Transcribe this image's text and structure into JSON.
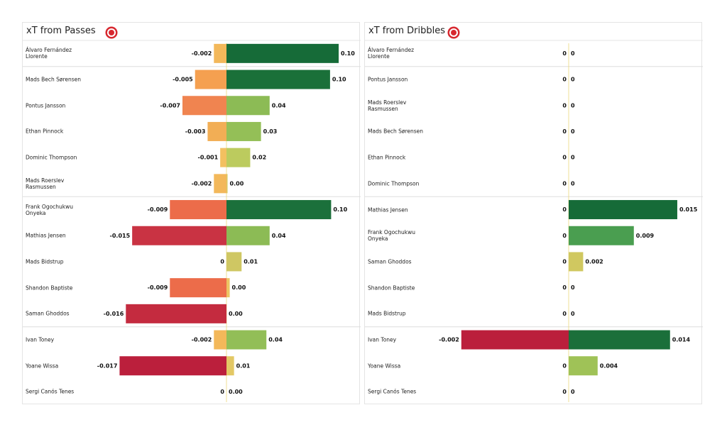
{
  "chart_data": [
    {
      "type": "diverging-bar",
      "title": "xT from Passes",
      "categories": [
        "Álvaro Fernández Llorente",
        "Mads Bech Sørensen",
        "Pontus Jansson",
        "Ethan Pinnock",
        "Dominic Thompson",
        "Mads Roerslev Rasmussen",
        "Frank Ogochukwu Onyeka",
        "Mathias Jensen",
        "Mads Bidstrup",
        "Shandon Baptiste",
        "Saman Ghoddos",
        "Ivan Toney",
        "Yoane Wissa",
        "Sergi Canós Tenes"
      ],
      "series": [
        {
          "values": [
            -0.002,
            -0.005,
            -0.007,
            -0.003,
            -0.001,
            -0.002,
            -0.009,
            -0.015,
            0,
            -0.009,
            -0.016,
            -0.002,
            -0.017,
            0
          ],
          "xlim": [
            -0.0175,
            0
          ],
          "colors": [
            "#f3b85a",
            "#f5a050",
            "#f08450",
            "#f2ae55",
            "#f3c060",
            "#f3b85a",
            "#ec6c4a",
            "#c93343",
            "#f3c060",
            "#ec6c4a",
            "#c42b3f",
            "#f3b85a",
            "#bb1f3c",
            "#f3c060"
          ]
        },
        {
          "values": [
            0.104,
            0.096,
            0.04,
            0.032,
            0.022,
            0.001,
            0.097,
            0.04,
            0.014,
            0.003,
            0,
            0.037,
            0.007,
            0
          ],
          "value_labels": [
            "0.10",
            "0.10",
            "0.04",
            "0.03",
            "0.02",
            "0.00",
            "0.10",
            "0.04",
            "0.01",
            "0.00",
            "0.00",
            "0.04",
            "0.01",
            "0.00"
          ],
          "xlim": [
            0,
            0.102
          ],
          "colors": [
            "#166b38",
            "#1a7039",
            "#8cbb55",
            "#94bf57",
            "#bccb5e",
            "#d8c862",
            "#1b703b",
            "#8cbb55",
            "#cfc763",
            "#ecc463",
            "#ecc463",
            "#92be57",
            "#e3c865",
            "#ecc463"
          ]
        }
      ]
    },
    {
      "type": "diverging-bar",
      "title": "xT from Dribbles",
      "categories": [
        "Álvaro Fernández Llorente",
        "Pontus Jansson",
        "Mads Roerslev Rasmussen",
        "Mads Bech Sørensen",
        "Ethan Pinnock",
        "Dominic Thompson",
        "Mathias Jensen",
        "Frank Ogochukwu Onyeka",
        "Saman Ghoddos",
        "Shandon Baptiste",
        "Mads Bidstrup",
        "Ivan Toney",
        "Yoane Wissa",
        "Sergi Canós Tenes"
      ],
      "series": [
        {
          "values": [
            0,
            0,
            0,
            0,
            0,
            0,
            0,
            0,
            0,
            0,
            0,
            -0.002,
            0,
            0
          ],
          "xlim": [
            -0.00205,
            0
          ],
          "colors": [
            "#e8d870",
            "#e8d870",
            "#e8d870",
            "#e8d870",
            "#e8d870",
            "#e8d870",
            "#e8d870",
            "#e8d870",
            "#e8d870",
            "#e8d870",
            "#e8d870",
            "#bb1f3c",
            "#e8d870",
            "#e8d870"
          ]
        },
        {
          "values": [
            0,
            0,
            0,
            0,
            0,
            0,
            0.015,
            0.009,
            0.002,
            0,
            0,
            0.014,
            0.004,
            0
          ],
          "xlim": [
            0,
            0.0152
          ],
          "colors": [
            "#e8d870",
            "#e8d870",
            "#e8d870",
            "#e8d870",
            "#e8d870",
            "#e8d870",
            "#166b38",
            "#4a9e50",
            "#d0c860",
            "#e8d870",
            "#e8d870",
            "#1b6f3a",
            "#9fc257",
            "#e8d870"
          ]
        }
      ]
    }
  ]
}
